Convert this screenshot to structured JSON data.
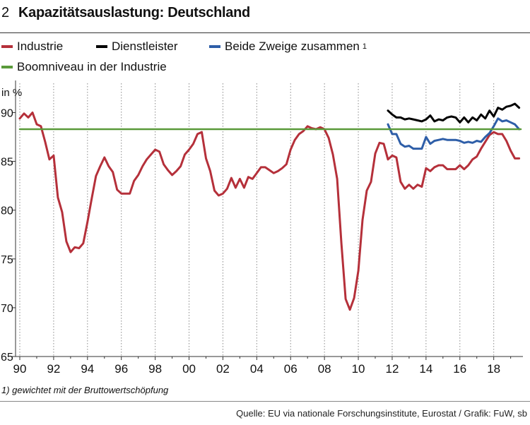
{
  "header": {
    "number": "2",
    "title": "Kapazitätsauslastung: Deutschland"
  },
  "legend": [
    {
      "label": "Industrie",
      "color": "#b5303a"
    },
    {
      "label": "Dienstleister",
      "color": "#000000"
    },
    {
      "label": "Beide Zweige zusammen",
      "sup": "1",
      "color": "#2e5ea8"
    },
    {
      "label": "Boomniveau in der Industrie",
      "color": "#5a9a3a"
    }
  ],
  "footnote": "1) gewichtet mit der Bruttowertschöpfung",
  "source": "Quelle: EU via nationale Forschungsinstitute, Eurostat / Grafik: FuW, sb",
  "chart_data": {
    "type": "line",
    "ylabel": "in %",
    "ylim": [
      65,
      93
    ],
    "yticks": [
      65,
      70,
      75,
      80,
      85,
      90
    ],
    "xlim": [
      1990,
      2019.6
    ],
    "xtick_labels": [
      "90",
      "92",
      "94",
      "96",
      "98",
      "00",
      "02",
      "04",
      "06",
      "08",
      "10",
      "12",
      "14",
      "16",
      "18"
    ],
    "grid": "vertical dotted",
    "series": [
      {
        "name": "Industrie",
        "color": "#b5303a",
        "x": [
          1990.0,
          1990.25,
          1990.5,
          1990.75,
          1991.0,
          1991.25,
          1991.5,
          1991.75,
          1992.0,
          1992.25,
          1992.5,
          1992.75,
          1993.0,
          1993.25,
          1993.5,
          1993.75,
          1994.0,
          1994.25,
          1994.5,
          1994.75,
          1995.0,
          1995.25,
          1995.5,
          1995.75,
          1996.0,
          1996.25,
          1996.5,
          1996.75,
          1997.0,
          1997.25,
          1997.5,
          1997.75,
          1998.0,
          1998.25,
          1998.5,
          1998.75,
          1999.0,
          1999.25,
          1999.5,
          1999.75,
          2000.0,
          2000.25,
          2000.5,
          2000.75,
          2001.0,
          2001.25,
          2001.5,
          2001.75,
          2002.0,
          2002.25,
          2002.5,
          2002.75,
          2003.0,
          2003.25,
          2003.5,
          2003.75,
          2004.0,
          2004.25,
          2004.5,
          2004.75,
          2005.0,
          2005.25,
          2005.5,
          2005.75,
          2006.0,
          2006.25,
          2006.5,
          2006.75,
          2007.0,
          2007.25,
          2007.5,
          2007.75,
          2008.0,
          2008.25,
          2008.5,
          2008.75,
          2009.0,
          2009.25,
          2009.5,
          2009.75,
          2010.0,
          2010.25,
          2010.5,
          2010.75,
          2011.0,
          2011.25,
          2011.5,
          2011.75,
          2012.0,
          2012.25,
          2012.5,
          2012.75,
          2013.0,
          2013.25,
          2013.5,
          2013.75,
          2014.0,
          2014.25,
          2014.5,
          2014.75,
          2015.0,
          2015.25,
          2015.5,
          2015.75,
          2016.0,
          2016.25,
          2016.5,
          2016.75,
          2017.0,
          2017.25,
          2017.5,
          2017.75,
          2018.0,
          2018.25,
          2018.5,
          2018.75,
          2019.0,
          2019.25,
          2019.5
        ],
        "values": [
          89.4,
          89.9,
          89.5,
          90.0,
          88.8,
          88.6,
          87.0,
          85.2,
          85.6,
          81.3,
          79.8,
          76.8,
          75.7,
          76.2,
          76.1,
          76.6,
          78.8,
          81.2,
          83.5,
          84.5,
          85.4,
          84.5,
          83.9,
          82.1,
          81.7,
          81.7,
          81.7,
          83.0,
          83.6,
          84.5,
          85.2,
          85.7,
          86.2,
          86.0,
          84.7,
          84.1,
          83.6,
          84.0,
          84.5,
          85.7,
          86.2,
          86.8,
          87.8,
          88.0,
          85.3,
          84.0,
          82.0,
          81.5,
          81.7,
          82.2,
          83.3,
          82.3,
          83.2,
          82.3,
          83.4,
          83.2,
          83.8,
          84.4,
          84.4,
          84.1,
          83.8,
          84.0,
          84.3,
          84.7,
          86.2,
          87.2,
          87.8,
          88.1,
          88.6,
          88.4,
          88.3,
          88.5,
          88.3,
          87.4,
          85.7,
          83.2,
          76.6,
          70.9,
          69.8,
          71.0,
          73.8,
          79.0,
          82.0,
          82.9,
          85.8,
          86.9,
          86.8,
          85.2,
          85.6,
          85.4,
          82.9,
          82.2,
          82.6,
          82.2,
          82.6,
          82.4,
          84.3,
          84.0,
          84.4,
          84.6,
          84.6,
          84.2,
          84.2,
          84.2,
          84.6,
          84.2,
          84.6,
          85.2,
          85.5,
          86.3,
          87.0,
          87.7,
          88.0,
          87.8,
          87.8,
          87.1,
          86.1,
          85.3,
          85.3
        ]
      },
      {
        "name": "Dienstleister",
        "color": "#000000",
        "x": [
          2011.75,
          2012.0,
          2012.25,
          2012.5,
          2012.75,
          2013.0,
          2013.25,
          2013.5,
          2013.75,
          2014.0,
          2014.25,
          2014.5,
          2014.75,
          2015.0,
          2015.25,
          2015.5,
          2015.75,
          2016.0,
          2016.25,
          2016.5,
          2016.75,
          2017.0,
          2017.25,
          2017.5,
          2017.75,
          2018.0,
          2018.25,
          2018.5,
          2018.75,
          2019.0,
          2019.25,
          2019.5
        ],
        "values": [
          90.2,
          89.8,
          89.5,
          89.5,
          89.3,
          89.4,
          89.3,
          89.2,
          89.1,
          89.3,
          89.7,
          89.1,
          89.3,
          89.2,
          89.5,
          89.6,
          89.5,
          89.0,
          89.5,
          89.0,
          89.5,
          89.2,
          89.8,
          89.4,
          90.2,
          89.6,
          90.5,
          90.3,
          90.6,
          90.7,
          90.9,
          90.5
        ]
      },
      {
        "name": "Beide Zweige zusammen",
        "color": "#2e5ea8",
        "x": [
          2011.75,
          2012.0,
          2012.25,
          2012.5,
          2012.75,
          2013.0,
          2013.25,
          2013.5,
          2013.75,
          2014.0,
          2014.25,
          2014.5,
          2014.75,
          2015.0,
          2015.25,
          2015.5,
          2015.75,
          2016.0,
          2016.25,
          2016.5,
          2016.75,
          2017.0,
          2017.25,
          2017.5,
          2017.75,
          2018.0,
          2018.25,
          2018.5,
          2018.75,
          2019.0,
          2019.25,
          2019.5
        ],
        "values": [
          88.8,
          87.8,
          87.8,
          86.8,
          86.5,
          86.6,
          86.3,
          86.3,
          86.3,
          87.5,
          86.8,
          87.1,
          87.2,
          87.3,
          87.2,
          87.2,
          87.2,
          87.1,
          86.9,
          87.0,
          86.9,
          87.1,
          87.0,
          87.5,
          87.9,
          88.6,
          89.4,
          89.1,
          89.2,
          89.0,
          88.8,
          88.3
        ]
      },
      {
        "name": "Boomniveau in der Industrie",
        "color": "#5a9a3a",
        "x": [
          1990.0,
          2019.6
        ],
        "values": [
          88.3,
          88.3
        ]
      }
    ]
  }
}
